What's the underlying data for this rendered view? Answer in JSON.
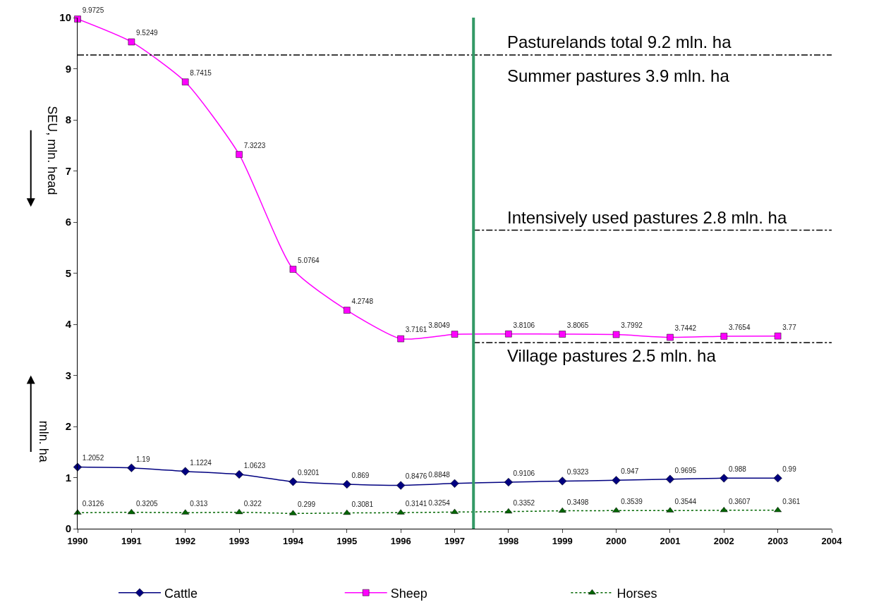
{
  "chart_data": {
    "type": "line",
    "x": [
      1990,
      1991,
      1992,
      1993,
      1994,
      1995,
      1996,
      1997,
      1998,
      1999,
      2000,
      2001,
      2002,
      2003
    ],
    "series": [
      {
        "name": "Cattle",
        "color": "#000080",
        "marker": "diamond",
        "line_style": "solid",
        "values": [
          1.2052,
          1.19,
          1.1224,
          1.0623,
          0.9201,
          0.869,
          0.8476,
          0.8848,
          0.9106,
          0.9323,
          0.947,
          0.9695,
          0.988,
          0.99
        ]
      },
      {
        "name": "Sheep",
        "color": "#ff00ff",
        "marker": "square",
        "line_style": "solid",
        "values": [
          9.9725,
          9.5249,
          8.7415,
          7.3223,
          5.0764,
          4.2748,
          3.7161,
          3.8049,
          3.8106,
          3.8065,
          3.7992,
          3.7442,
          3.7654,
          3.77
        ]
      },
      {
        "name": "Horses",
        "color": "#006600",
        "marker": "triangle",
        "line_style": "dotted",
        "values": [
          0.3126,
          0.3205,
          0.313,
          0.322,
          0.299,
          0.3081,
          0.3141,
          0.3254,
          0.3352,
          0.3498,
          0.3539,
          0.3544,
          0.3607,
          0.361
        ]
      }
    ],
    "data_labels": true,
    "ylabel": "SEU, mln. head",
    "annotations": [
      "mln. ha",
      "Summer pastures 3.9 mln. ha"
    ],
    "xlim": [
      1990,
      2004
    ],
    "xticks": [
      1990,
      1991,
      1992,
      1993,
      1994,
      1995,
      1996,
      1997,
      1998,
      1999,
      2000,
      2001,
      2002,
      2003,
      2004
    ],
    "ylim": [
      0,
      10
    ],
    "yticks": [
      0,
      1,
      2,
      3,
      4,
      5,
      6,
      7,
      8,
      9,
      10
    ],
    "ref_lines": [
      {
        "axis": "y",
        "value": 9.27,
        "label": "Pasturelands total 9.2 mln. ha",
        "color": "#000000",
        "line_style": "dashdot"
      },
      {
        "axis": "y",
        "value": 5.84,
        "label": "Intensively used pastures 2.8 mln. ha",
        "color": "#000000",
        "line_style": "dashdot"
      },
      {
        "axis": "y",
        "value": 3.64,
        "label": "Village pastures 2.5 mln. ha",
        "color": "#000000",
        "line_style": "dashdot"
      },
      {
        "axis": "x",
        "value": 1997.35,
        "color": "#339966",
        "line_style": "solid"
      }
    ],
    "legend": "bottom"
  }
}
